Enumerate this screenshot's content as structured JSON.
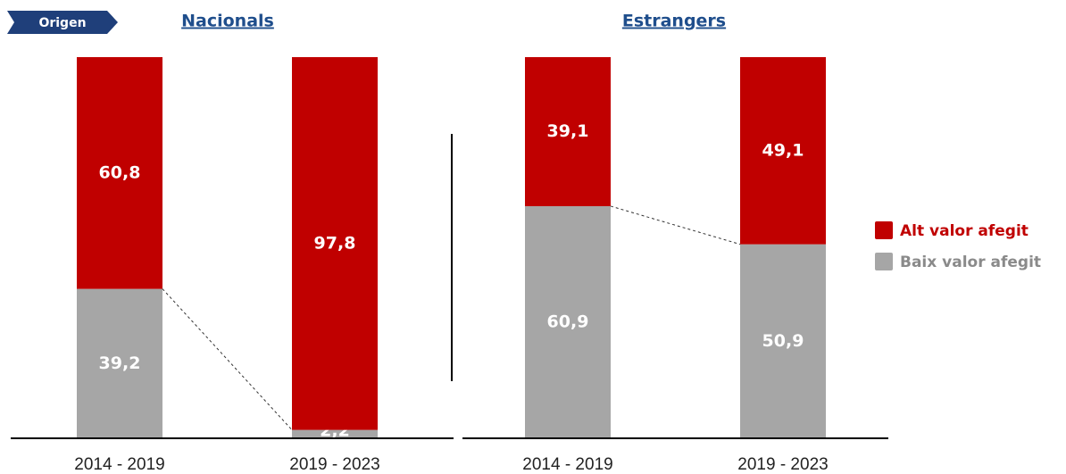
{
  "tag": "Origen",
  "chart_data": [
    {
      "type": "stacked_bar",
      "title": "Nacionals",
      "categories": [
        "2014 - 2019",
        "2019 - 2023"
      ],
      "ylim": [
        0,
        100
      ],
      "series": [
        {
          "name": "Baix valor afegit",
          "color": "#a6a6a6",
          "values": [
            39.2,
            2.2
          ],
          "value_labels": [
            "39,2",
            "2,2"
          ]
        },
        {
          "name": "Alt valor afegit",
          "color": "#c00000",
          "values": [
            60.8,
            97.8
          ],
          "value_labels": [
            "60,8",
            "97,8"
          ]
        }
      ]
    },
    {
      "type": "stacked_bar",
      "title": "Estrangers",
      "categories": [
        "2014 - 2019",
        "2019 - 2023"
      ],
      "ylim": [
        0,
        100
      ],
      "series": [
        {
          "name": "Baix valor afegit",
          "color": "#a6a6a6",
          "values": [
            60.9,
            50.9
          ],
          "value_labels": [
            "60,9",
            "50,9"
          ]
        },
        {
          "name": "Alt valor afegit",
          "color": "#c00000",
          "values": [
            39.1,
            49.1
          ],
          "value_labels": [
            "39,1",
            "49,1"
          ]
        }
      ]
    }
  ]
}
